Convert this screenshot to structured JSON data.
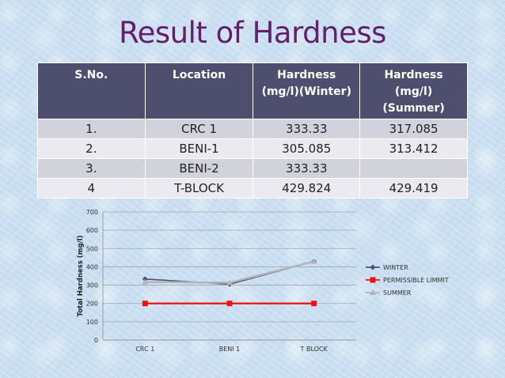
{
  "slide": {
    "title": "Result of Hardness"
  },
  "table": {
    "headers": [
      "S.No.",
      "Location",
      "Hardness (mg/l)(Winter)",
      "Hardness (mg/l) (Summer)"
    ],
    "header_lines": [
      [
        "S.No."
      ],
      [
        "Location"
      ],
      [
        "Hardness",
        "(mg/l)(Winter)"
      ],
      [
        "Hardness",
        "(mg/l)",
        "(Summer)"
      ]
    ],
    "rows": [
      [
        "1.",
        "CRC 1",
        "333.33",
        "317.085"
      ],
      [
        "2.",
        "BENI-1",
        "305.085",
        "313.412"
      ],
      [
        "3.",
        "BENI-2",
        "333.33",
        ""
      ],
      [
        "4",
        "T-BLOCK",
        "429.824",
        "429.419"
      ]
    ]
  },
  "chart_data": {
    "type": "line",
    "categories": [
      "CRC 1",
      "BENI 1",
      "T BLOCK"
    ],
    "ylabel": "Total Hardness (mg/l)",
    "xlabel": "",
    "ylim": [
      0,
      700
    ],
    "yticks": [
      "0",
      "100",
      "200",
      "300",
      "400",
      "500",
      "600",
      "700"
    ],
    "grid": true,
    "legend_position": "right",
    "series": [
      {
        "name": "WINTER",
        "values": [
          333.33,
          305.085,
          429.824
        ],
        "color": "#4a5275",
        "marker": "diamond"
      },
      {
        "name": "PERMISSIBLE LIMMIT",
        "values": [
          200,
          200,
          200
        ],
        "color": "#ee1111",
        "marker": "square"
      },
      {
        "name": "SUMMER",
        "values": [
          317.085,
          313.412,
          429.419
        ],
        "color": "#b4b4bc",
        "marker": "triangle"
      }
    ]
  }
}
